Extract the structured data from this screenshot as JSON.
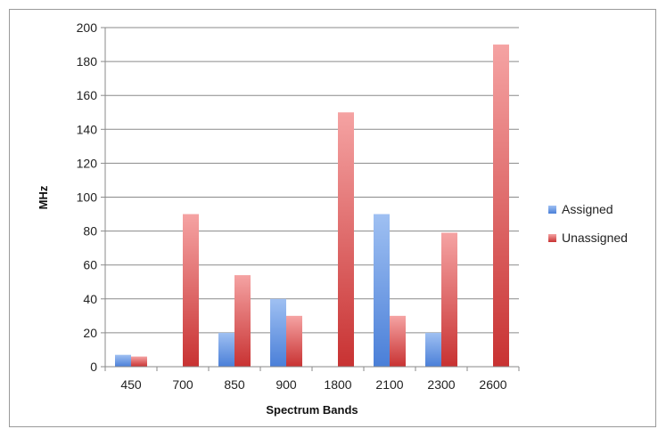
{
  "chart_data": {
    "type": "bar",
    "title": "",
    "xlabel": "Spectrum Bands",
    "ylabel": "MHz",
    "ylim": [
      0,
      200
    ],
    "yticks": [
      0,
      20,
      40,
      60,
      80,
      100,
      120,
      140,
      160,
      180,
      200
    ],
    "grid": true,
    "legend_position": "right",
    "categories": [
      "450",
      "700",
      "850",
      "900",
      "1800",
      "2100",
      "2300",
      "2600"
    ],
    "series": [
      {
        "name": "Assigned",
        "color": "#5b8fe0",
        "values": [
          7,
          0,
          20,
          40,
          0,
          90,
          20,
          0
        ]
      },
      {
        "name": "Unassigned",
        "color": "#d94848",
        "values": [
          6,
          90,
          54,
          30,
          150,
          30,
          79,
          190
        ]
      }
    ]
  }
}
